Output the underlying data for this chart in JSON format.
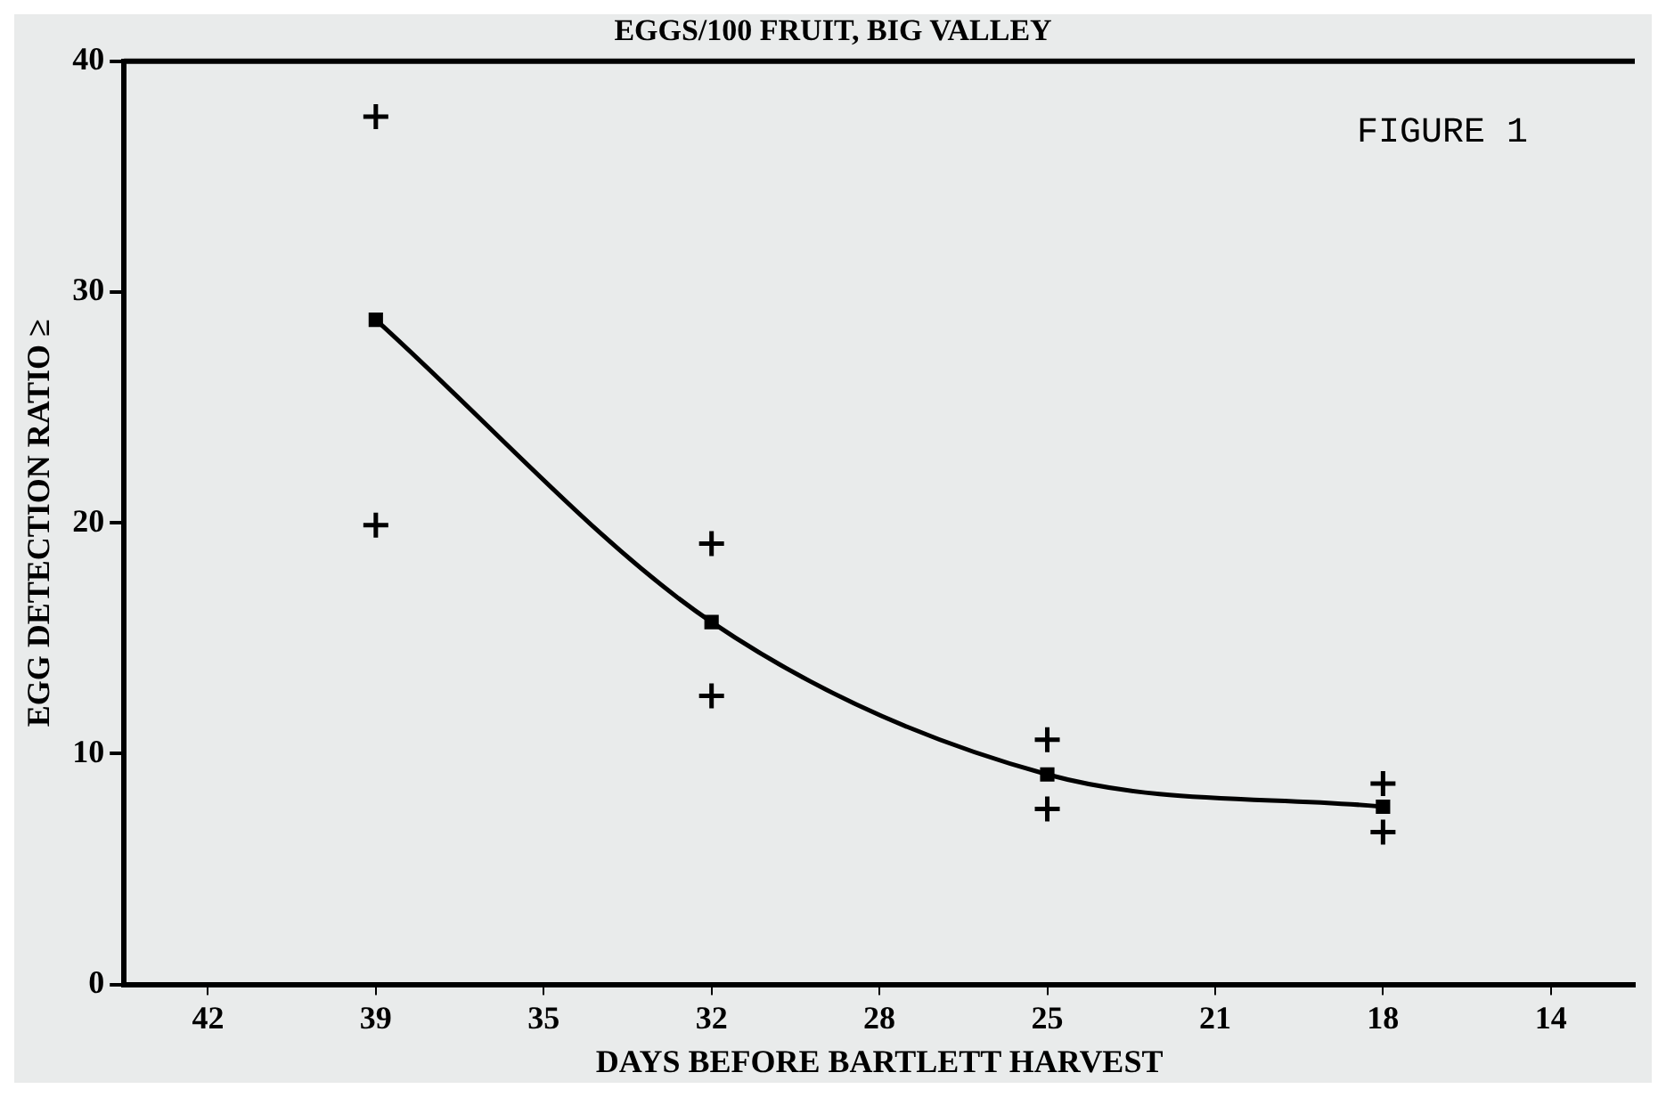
{
  "chart_data": {
    "type": "scatter",
    "title": "EGGS/100 FRUIT, BIG VALLEY",
    "xlabel": "DAYS BEFORE BARTLETT HARVEST",
    "ylabel": "EGG DETECTION RATIO ≥",
    "annotations": [
      "FIGURE 1"
    ],
    "categories": [
      "42",
      "39",
      "35",
      "32",
      "28",
      "25",
      "21",
      "18",
      "14"
    ],
    "ylim": [
      0,
      40
    ],
    "yticks": [
      0,
      10,
      20,
      30,
      40
    ],
    "grid": false,
    "legend": false,
    "series": [
      {
        "type": "line",
        "color": "#000000",
        "marker": "none",
        "line_style": "solid",
        "x": [
          "39",
          "32",
          "25",
          "18"
        ],
        "values": [
          28.8,
          15.7,
          9.1,
          7.7
        ]
      },
      {
        "type": "scatter",
        "color": "#000000",
        "marker": "square",
        "x": [
          "39",
          "32",
          "25",
          "18"
        ],
        "values": [
          28.8,
          15.7,
          9.1,
          7.7
        ]
      },
      {
        "type": "scatter",
        "color": "#000000",
        "marker": "cross",
        "x": [
          "39",
          "39",
          "32",
          "32",
          "25",
          "25",
          "18",
          "18"
        ],
        "values": [
          37.6,
          19.9,
          19.1,
          12.5,
          10.6,
          7.6,
          8.7,
          6.6
        ]
      }
    ]
  }
}
